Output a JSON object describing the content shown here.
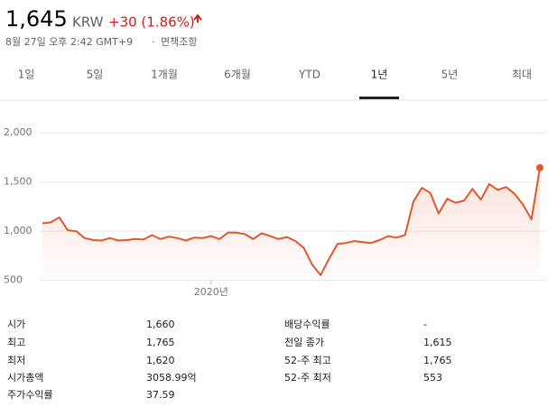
{
  "header": {
    "price": "1,645",
    "currency": "KRW",
    "change": "+30 (1.86%)",
    "timestamp": "8월 27일 오후 2:42 GMT+9",
    "disclaimer": "면책조항"
  },
  "tabs": [
    {
      "label": "1일"
    },
    {
      "label": "5일"
    },
    {
      "label": "1개월"
    },
    {
      "label": "6개월"
    },
    {
      "label": "YTD"
    },
    {
      "label": "1년",
      "selected": true
    },
    {
      "label": "5년"
    },
    {
      "label": "최대"
    }
  ],
  "chart_data": {
    "type": "line",
    "categories": [
      null,
      null,
      null,
      null,
      null,
      null,
      null,
      null,
      null,
      null,
      null,
      null,
      null,
      null,
      null,
      null,
      null,
      null,
      null,
      null,
      "2020년",
      null,
      null,
      null,
      null,
      null,
      null,
      null,
      null,
      null,
      null,
      null,
      null,
      null,
      null,
      null,
      null,
      null,
      null,
      null,
      null,
      null,
      null,
      null,
      null,
      null,
      null,
      null,
      null,
      null,
      null,
      null,
      null,
      null,
      null,
      null,
      null,
      null,
      null,
      null
    ],
    "series": [
      {
        "color": "#e4572e",
        "values": [
          1080,
          1090,
          1140,
          1010,
          1000,
          930,
          910,
          905,
          930,
          905,
          910,
          920,
          915,
          960,
          920,
          945,
          930,
          905,
          935,
          930,
          950,
          920,
          985,
          985,
          970,
          920,
          980,
          950,
          920,
          940,
          900,
          830,
          660,
          553,
          720,
          870,
          880,
          900,
          890,
          880,
          910,
          950,
          935,
          960,
          1300,
          1440,
          1390,
          1180,
          1330,
          1290,
          1310,
          1430,
          1320,
          1480,
          1420,
          1450,
          1380,
          1270,
          1120,
          1645
        ]
      }
    ],
    "ylim": [
      460,
      2250
    ],
    "yticks": [
      {
        "value": 2000,
        "label": "2,000"
      },
      {
        "value": 1500,
        "label": "1,500"
      },
      {
        "value": 1000,
        "label": "1,000"
      },
      500
    ],
    "grid": true
  },
  "stats": {
    "rows": [
      [
        "시가",
        "1,660",
        "배당수익률",
        "-"
      ],
      [
        "최고",
        "1,765",
        "전일 종가",
        "1,615"
      ],
      [
        "최저",
        "1,620",
        "52-주 최고",
        "1,765"
      ],
      [
        "시가총액",
        "3058.99억",
        "52-주 최저",
        "553"
      ],
      [
        "주가수익률",
        "37.59"
      ]
    ]
  }
}
